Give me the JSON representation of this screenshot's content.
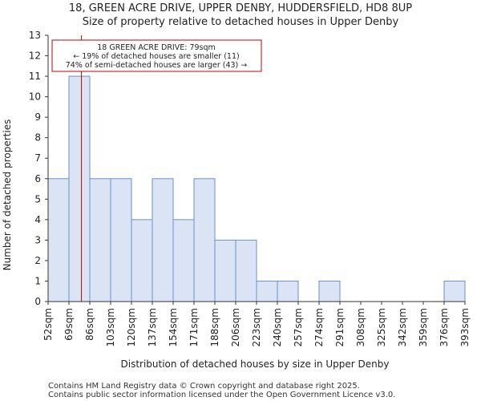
{
  "chart_data": {
    "type": "bar",
    "title": "18, GREEN ACRE DRIVE, UPPER DENBY, HUDDERSFIELD, HD8 8UP",
    "subtitle": "Size of property relative to detached houses in Upper Denby",
    "xlabel": "Distribution of detached houses by size in Upper Denby",
    "ylabel": "Number of detached properties",
    "bin_edges": [
      "52sqm",
      "69sqm",
      "86sqm",
      "103sqm",
      "120sqm",
      "137sqm",
      "154sqm",
      "171sqm",
      "188sqm",
      "206sqm",
      "223sqm",
      "240sqm",
      "257sqm",
      "274sqm",
      "291sqm",
      "308sqm",
      "325sqm",
      "342sqm",
      "359sqm",
      "376sqm",
      "393sqm"
    ],
    "values": [
      6,
      11,
      6,
      6,
      4,
      6,
      4,
      6,
      3,
      3,
      1,
      1,
      0,
      1,
      0,
      0,
      0,
      0,
      0,
      1
    ],
    "ylim": [
      0,
      13
    ],
    "yticks": [
      "0",
      "1",
      "2",
      "3",
      "4",
      "5",
      "6",
      "7",
      "8",
      "9",
      "10",
      "11",
      "12",
      "13"
    ],
    "marker": {
      "value_sqm": 79,
      "position_bins": 1.6,
      "color": "#c00000"
    },
    "annotation": {
      "line1": "18 GREEN ACRE DRIVE: 79sqm",
      "line2": "← 19% of detached houses are smaller (11)",
      "line3": "74% of semi-detached houses are larger (43) →"
    },
    "bar_fill": "#dbe4f4",
    "bar_edge": "#6b8fcd"
  },
  "footer": {
    "line1": "Contains HM Land Registry data © Crown copyright and database right 2025.",
    "line2": "Contains public sector information licensed under the Open Government Licence v3.0."
  }
}
